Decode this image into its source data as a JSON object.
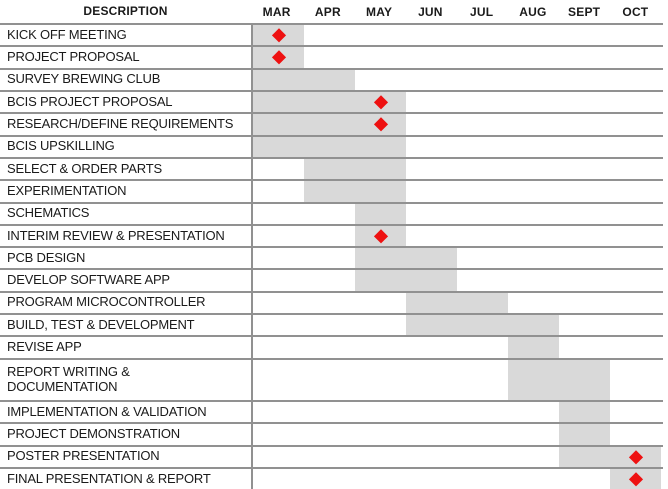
{
  "header": {
    "description_label": "DESCRIPTION"
  },
  "colors": {
    "bar_fill": "#d9d9d9",
    "milestone_red": "#ee1111",
    "gridline": "#919191",
    "text": "#1a1a1a",
    "background": "#ffffff"
  },
  "chart_data": {
    "type": "gantt",
    "title": "",
    "months": [
      "MAR",
      "APR",
      "MAY",
      "JUN",
      "JUL",
      "AUG",
      "SEPT",
      "OCT"
    ],
    "legend": "none",
    "grid": "horizontal-lines",
    "tasks": [
      {
        "label": "KICK OFF MEETING",
        "bar_start": "MAR",
        "bar_end": "MAR",
        "milestone": "MAR",
        "tall": false
      },
      {
        "label": "PROJECT PROPOSAL",
        "bar_start": "MAR",
        "bar_end": "MAR",
        "milestone": "MAR",
        "tall": false
      },
      {
        "label": "SURVEY BREWING CLUB",
        "bar_start": "MAR",
        "bar_end": "APR",
        "milestone": null,
        "tall": false
      },
      {
        "label": "BCIS PROJECT PROPOSAL",
        "bar_start": "MAR",
        "bar_end": "MAY",
        "milestone": "MAY",
        "tall": false
      },
      {
        "label": "RESEARCH/DEFINE REQUIREMENTS",
        "bar_start": "MAR",
        "bar_end": "MAY",
        "milestone": "MAY",
        "tall": false
      },
      {
        "label": "BCIS UPSKILLING",
        "bar_start": "MAR",
        "bar_end": "MAY",
        "milestone": null,
        "tall": false
      },
      {
        "label": "SELECT & ORDER PARTS",
        "bar_start": "APR",
        "bar_end": "MAY",
        "milestone": null,
        "tall": false
      },
      {
        "label": "EXPERIMENTATION",
        "bar_start": "APR",
        "bar_end": "MAY",
        "milestone": null,
        "tall": false
      },
      {
        "label": "SCHEMATICS",
        "bar_start": "MAY",
        "bar_end": "MAY",
        "milestone": null,
        "tall": false
      },
      {
        "label": "INTERIM REVIEW & PRESENTATION",
        "bar_start": "MAY",
        "bar_end": "MAY",
        "milestone": "MAY",
        "tall": false
      },
      {
        "label": "PCB DESIGN",
        "bar_start": "MAY",
        "bar_end": "JUN",
        "milestone": null,
        "tall": false
      },
      {
        "label": "DEVELOP SOFTWARE APP",
        "bar_start": "MAY",
        "bar_end": "JUN",
        "milestone": null,
        "tall": false
      },
      {
        "label": "PROGRAM MICROCONTROLLER",
        "bar_start": "JUN",
        "bar_end": "JUL",
        "milestone": null,
        "tall": false
      },
      {
        "label": "BUILD, TEST & DEVELOPMENT",
        "bar_start": "JUN",
        "bar_end": "AUG",
        "milestone": null,
        "tall": false
      },
      {
        "label": "REVISE APP",
        "bar_start": "AUG",
        "bar_end": "AUG",
        "milestone": null,
        "tall": false
      },
      {
        "label": "REPORT WRITING & DOCUMENTATION",
        "bar_start": "AUG",
        "bar_end": "SEPT",
        "milestone": null,
        "tall": true
      },
      {
        "label": "IMPLEMENTATION & VALIDATION",
        "bar_start": "SEPT",
        "bar_end": "SEPT",
        "milestone": null,
        "tall": false
      },
      {
        "label": "PROJECT DEMONSTRATION",
        "bar_start": "SEPT",
        "bar_end": "SEPT",
        "milestone": null,
        "tall": false
      },
      {
        "label": "POSTER PRESENTATION",
        "bar_start": "SEPT",
        "bar_end": "OCT",
        "milestone": "OCT",
        "tall": false
      },
      {
        "label": "FINAL PRESENTATION & REPORT",
        "bar_start": "OCT",
        "bar_end": "OCT",
        "milestone": "OCT",
        "tall": false
      }
    ]
  }
}
